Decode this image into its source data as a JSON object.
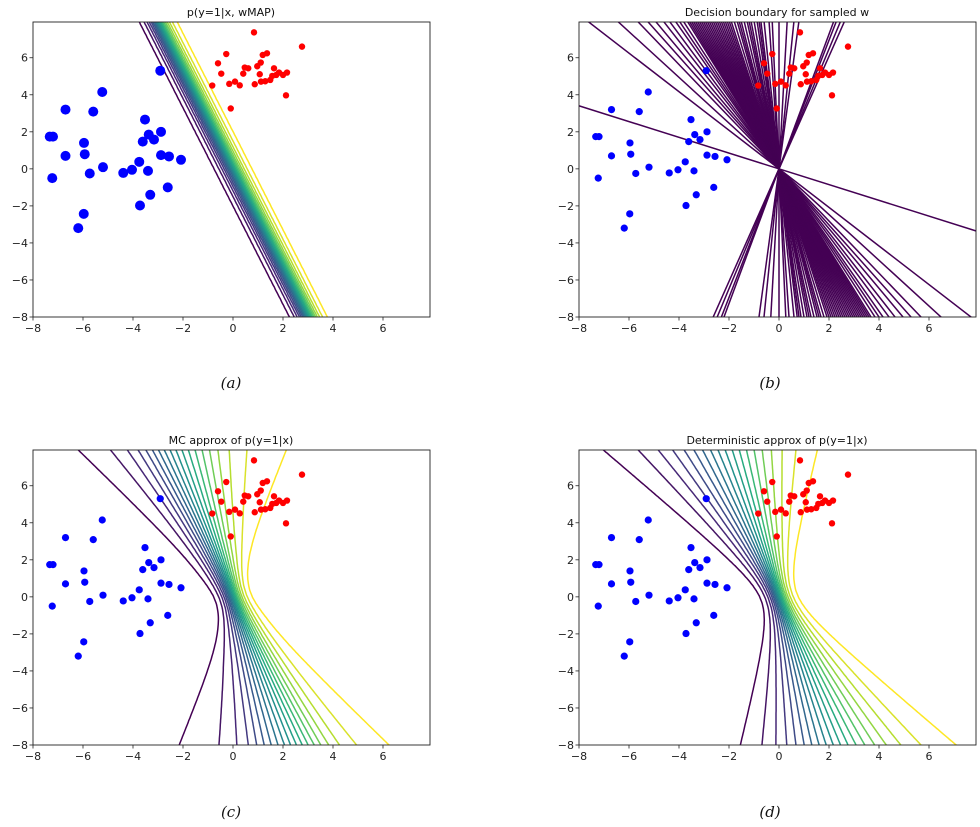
{
  "chart_data": [
    {
      "panel": "a",
      "caption": "(a)",
      "type": "contour",
      "title": "p(y=1|x, wMAP)",
      "xlim": [
        -8,
        7.88
      ],
      "ylim": [
        -8,
        7.93
      ],
      "xticks": [
        -8,
        -6,
        -4,
        -2,
        0,
        2,
        4,
        6
      ],
      "yticks": [
        -8,
        -6,
        -4,
        -2,
        0,
        2,
        4,
        6
      ],
      "colormap": "viridis",
      "contour_levels": [
        0.05,
        0.1,
        0.15,
        0.2,
        0.25,
        0.3,
        0.35,
        0.4,
        0.45,
        0.5,
        0.55,
        0.6,
        0.65,
        0.7,
        0.75,
        0.8,
        0.85,
        0.9,
        0.95
      ],
      "w_map": [
        3.9,
        1.47
      ],
      "class_colors": {
        "class_0": "#0000ff",
        "class_1": "#ff0000"
      },
      "class_0": [
        [
          -7.33,
          1.74
        ],
        [
          -7.2,
          1.74
        ],
        [
          -6.7,
          3.2
        ],
        [
          -5.23,
          4.15
        ],
        [
          -5.59,
          3.09
        ],
        [
          -5.96,
          1.4
        ],
        [
          -5.93,
          0.79
        ],
        [
          -6.7,
          0.7
        ],
        [
          -7.23,
          -0.5
        ],
        [
          -5.73,
          -0.25
        ],
        [
          -5.2,
          0.09
        ],
        [
          -5.97,
          -2.43
        ],
        [
          -6.19,
          -3.2
        ],
        [
          -4.39,
          -0.22
        ],
        [
          -4.04,
          -0.05
        ],
        [
          -3.75,
          0.38
        ],
        [
          -3.4,
          -0.11
        ],
        [
          -3.72,
          -1.98
        ],
        [
          -3.31,
          -1.4
        ],
        [
          -3.52,
          2.66
        ],
        [
          -3.37,
          1.85
        ],
        [
          -3.61,
          1.47
        ],
        [
          -3.16,
          1.58
        ],
        [
          -2.88,
          2.0
        ],
        [
          -2.88,
          0.74
        ],
        [
          -2.56,
          0.67
        ],
        [
          -2.08,
          0.49
        ],
        [
          -2.61,
          -1.0
        ],
        [
          -2.91,
          5.3
        ]
      ],
      "class_1": [
        [
          0.84,
          7.37
        ],
        [
          2.76,
          6.6
        ],
        [
          -0.27,
          6.2
        ],
        [
          -0.6,
          5.7
        ],
        [
          -0.47,
          5.14
        ],
        [
          -0.83,
          4.5
        ],
        [
          -0.15,
          4.59
        ],
        [
          0.08,
          4.71
        ],
        [
          0.27,
          4.51
        ],
        [
          -0.09,
          3.26
        ],
        [
          0.41,
          5.14
        ],
        [
          0.47,
          5.47
        ],
        [
          0.61,
          5.43
        ],
        [
          0.87,
          4.57
        ],
        [
          0.97,
          5.54
        ],
        [
          1.11,
          5.74
        ],
        [
          1.07,
          5.11
        ],
        [
          1.19,
          6.15
        ],
        [
          1.36,
          6.24
        ],
        [
          1.12,
          4.71
        ],
        [
          1.29,
          4.73
        ],
        [
          1.49,
          4.8
        ],
        [
          1.64,
          5.43
        ],
        [
          1.57,
          5.02
        ],
        [
          1.73,
          5.07
        ],
        [
          1.84,
          5.2
        ],
        [
          2.0,
          5.07
        ],
        [
          2.16,
          5.2
        ],
        [
          2.12,
          3.97
        ]
      ]
    },
    {
      "panel": "b",
      "caption": "(b)",
      "type": "line",
      "title": "Decision boundary for sampled w",
      "xlim": [
        -8,
        7.88
      ],
      "ylim": [
        -8,
        7.93
      ],
      "xticks": [
        -8,
        -6,
        -4,
        -2,
        0,
        2,
        4,
        6
      ],
      "yticks": [
        -8,
        -6,
        -4,
        -2,
        0,
        2,
        4,
        6
      ],
      "line_color": "#440154",
      "boundary_lines_x_over_y": [
        0.329,
        0.309,
        0.288,
        0.275,
        0.1,
        0.075,
        0.041,
        0,
        -0.034,
        -0.05,
        -0.075,
        -0.091,
        -0.1,
        -0.11,
        -0.125,
        -0.14,
        -0.15,
        -0.16,
        -0.175,
        -0.19,
        -0.2,
        -0.21,
        -0.225,
        -0.24,
        -0.25,
        -0.26,
        -0.27,
        -0.28,
        -0.29,
        -0.3,
        -0.31,
        -0.32,
        -0.33,
        -0.34,
        -0.35,
        -0.36,
        -0.37,
        -0.38,
        -0.39,
        -0.4,
        -0.41,
        -0.42,
        -0.43,
        -0.44,
        -0.45,
        -0.46,
        -0.48,
        -0.5,
        -0.52,
        -0.55,
        -0.58,
        -0.62,
        -0.66,
        -0.71,
        -0.81,
        -0.96,
        -2.35
      ],
      "class_colors": {
        "class_0": "#0000ff",
        "class_1": "#ff0000"
      },
      "class_0": [
        [
          -7.33,
          1.74
        ],
        [
          -7.2,
          1.74
        ],
        [
          -6.7,
          3.2
        ],
        [
          -5.23,
          4.15
        ],
        [
          -5.59,
          3.09
        ],
        [
          -5.96,
          1.4
        ],
        [
          -5.93,
          0.79
        ],
        [
          -6.7,
          0.7
        ],
        [
          -7.23,
          -0.5
        ],
        [
          -5.73,
          -0.25
        ],
        [
          -5.2,
          0.09
        ],
        [
          -5.97,
          -2.43
        ],
        [
          -6.19,
          -3.2
        ],
        [
          -4.39,
          -0.22
        ],
        [
          -4.04,
          -0.05
        ],
        [
          -3.75,
          0.38
        ],
        [
          -3.4,
          -0.11
        ],
        [
          -3.72,
          -1.98
        ],
        [
          -3.31,
          -1.4
        ],
        [
          -3.52,
          2.66
        ],
        [
          -3.37,
          1.85
        ],
        [
          -3.61,
          1.47
        ],
        [
          -3.16,
          1.58
        ],
        [
          -2.88,
          2.0
        ],
        [
          -2.88,
          0.74
        ],
        [
          -2.56,
          0.67
        ],
        [
          -2.08,
          0.49
        ],
        [
          -2.61,
          -1.0
        ],
        [
          -2.91,
          5.3
        ]
      ],
      "class_1": [
        [
          0.84,
          7.37
        ],
        [
          2.76,
          6.6
        ],
        [
          -0.27,
          6.2
        ],
        [
          -0.6,
          5.7
        ],
        [
          -0.47,
          5.14
        ],
        [
          -0.83,
          4.5
        ],
        [
          -0.15,
          4.59
        ],
        [
          0.08,
          4.71
        ],
        [
          0.27,
          4.51
        ],
        [
          -0.09,
          3.26
        ],
        [
          0.41,
          5.14
        ],
        [
          0.47,
          5.47
        ],
        [
          0.61,
          5.43
        ],
        [
          0.87,
          4.57
        ],
        [
          0.97,
          5.54
        ],
        [
          1.11,
          5.74
        ],
        [
          1.07,
          5.11
        ],
        [
          1.19,
          6.15
        ],
        [
          1.36,
          6.24
        ],
        [
          1.12,
          4.71
        ],
        [
          1.29,
          4.73
        ],
        [
          1.49,
          4.8
        ],
        [
          1.64,
          5.43
        ],
        [
          1.57,
          5.02
        ],
        [
          1.73,
          5.07
        ],
        [
          1.84,
          5.2
        ],
        [
          2.0,
          5.07
        ],
        [
          2.16,
          5.2
        ],
        [
          2.12,
          3.97
        ]
      ]
    },
    {
      "panel": "c",
      "caption": "(c)",
      "type": "contour",
      "title": "MC approx of p(y=1|x)",
      "xlim": [
        -8,
        7.88
      ],
      "ylim": [
        -8,
        7.93
      ],
      "xticks": [
        -8,
        -6,
        -4,
        -2,
        0,
        2,
        4,
        6
      ],
      "yticks": [
        -8,
        -6,
        -4,
        -2,
        0,
        2,
        4,
        6
      ],
      "colormap": "viridis",
      "contour_levels": [
        0.05,
        0.1,
        0.15,
        0.2,
        0.25,
        0.3,
        0.35,
        0.4,
        0.45,
        0.5,
        0.55,
        0.6,
        0.65,
        0.7,
        0.75,
        0.8,
        0.85,
        0.9,
        0.95
      ],
      "class_colors": {
        "class_0": "#0000ff",
        "class_1": "#ff0000"
      },
      "class_0": [
        [
          -7.33,
          1.74
        ],
        [
          -7.2,
          1.74
        ],
        [
          -6.7,
          3.2
        ],
        [
          -5.23,
          4.15
        ],
        [
          -5.59,
          3.09
        ],
        [
          -5.96,
          1.4
        ],
        [
          -5.93,
          0.79
        ],
        [
          -6.7,
          0.7
        ],
        [
          -7.23,
          -0.5
        ],
        [
          -5.73,
          -0.25
        ],
        [
          -5.2,
          0.09
        ],
        [
          -5.97,
          -2.43
        ],
        [
          -6.19,
          -3.2
        ],
        [
          -4.39,
          -0.22
        ],
        [
          -4.04,
          -0.05
        ],
        [
          -3.75,
          0.38
        ],
        [
          -3.4,
          -0.11
        ],
        [
          -3.72,
          -1.98
        ],
        [
          -3.31,
          -1.4
        ],
        [
          -3.52,
          2.66
        ],
        [
          -3.37,
          1.85
        ],
        [
          -3.61,
          1.47
        ],
        [
          -3.16,
          1.58
        ],
        [
          -2.88,
          2.0
        ],
        [
          -2.88,
          0.74
        ],
        [
          -2.56,
          0.67
        ],
        [
          -2.08,
          0.49
        ],
        [
          -2.61,
          -1.0
        ],
        [
          -2.91,
          5.3
        ]
      ],
      "class_1": [
        [
          0.84,
          7.37
        ],
        [
          2.76,
          6.6
        ],
        [
          -0.27,
          6.2
        ],
        [
          -0.6,
          5.7
        ],
        [
          -0.47,
          5.14
        ],
        [
          -0.83,
          4.5
        ],
        [
          -0.15,
          4.59
        ],
        [
          0.08,
          4.71
        ],
        [
          0.27,
          4.51
        ],
        [
          -0.09,
          3.26
        ],
        [
          0.41,
          5.14
        ],
        [
          0.47,
          5.47
        ],
        [
          0.61,
          5.43
        ],
        [
          0.87,
          4.57
        ],
        [
          0.97,
          5.54
        ],
        [
          1.11,
          5.74
        ],
        [
          1.07,
          5.11
        ],
        [
          1.19,
          6.15
        ],
        [
          1.36,
          6.24
        ],
        [
          1.12,
          4.71
        ],
        [
          1.29,
          4.73
        ],
        [
          1.49,
          4.8
        ],
        [
          1.64,
          5.43
        ],
        [
          1.57,
          5.02
        ],
        [
          1.73,
          5.07
        ],
        [
          1.84,
          5.2
        ],
        [
          2.0,
          5.07
        ],
        [
          2.16,
          5.2
        ],
        [
          2.12,
          3.97
        ]
      ]
    },
    {
      "panel": "d",
      "caption": "(d)",
      "type": "contour",
      "title": "Deterministic approx of p(y=1|x)",
      "xlim": [
        -8,
        7.88
      ],
      "ylim": [
        -8,
        7.93
      ],
      "xticks": [
        -8,
        -6,
        -4,
        -2,
        0,
        2,
        4,
        6
      ],
      "yticks": [
        -8,
        -6,
        -4,
        -2,
        0,
        2,
        4,
        6
      ],
      "colormap": "viridis",
      "contour_levels": [
        0.05,
        0.1,
        0.15,
        0.2,
        0.25,
        0.3,
        0.35,
        0.4,
        0.45,
        0.5,
        0.55,
        0.6,
        0.65,
        0.7,
        0.75,
        0.8,
        0.85,
        0.9,
        0.95
      ],
      "class_colors": {
        "class_0": "#0000ff",
        "class_1": "#ff0000"
      },
      "class_0": [
        [
          -7.33,
          1.74
        ],
        [
          -7.2,
          1.74
        ],
        [
          -6.7,
          3.2
        ],
        [
          -5.23,
          4.15
        ],
        [
          -5.59,
          3.09
        ],
        [
          -5.96,
          1.4
        ],
        [
          -5.93,
          0.79
        ],
        [
          -6.7,
          0.7
        ],
        [
          -7.23,
          -0.5
        ],
        [
          -5.73,
          -0.25
        ],
        [
          -5.2,
          0.09
        ],
        [
          -5.97,
          -2.43
        ],
        [
          -6.19,
          -3.2
        ],
        [
          -4.39,
          -0.22
        ],
        [
          -4.04,
          -0.05
        ],
        [
          -3.75,
          0.38
        ],
        [
          -3.4,
          -0.11
        ],
        [
          -3.72,
          -1.98
        ],
        [
          -3.31,
          -1.4
        ],
        [
          -3.52,
          2.66
        ],
        [
          -3.37,
          1.85
        ],
        [
          -3.61,
          1.47
        ],
        [
          -3.16,
          1.58
        ],
        [
          -2.88,
          2.0
        ],
        [
          -2.88,
          0.74
        ],
        [
          -2.56,
          0.67
        ],
        [
          -2.08,
          0.49
        ],
        [
          -2.61,
          -1.0
        ],
        [
          -2.91,
          5.3
        ]
      ],
      "class_1": [
        [
          0.84,
          7.37
        ],
        [
          2.76,
          6.6
        ],
        [
          -0.27,
          6.2
        ],
        [
          -0.6,
          5.7
        ],
        [
          -0.47,
          5.14
        ],
        [
          -0.83,
          4.5
        ],
        [
          -0.15,
          4.59
        ],
        [
          0.08,
          4.71
        ],
        [
          0.27,
          4.51
        ],
        [
          -0.09,
          3.26
        ],
        [
          0.41,
          5.14
        ],
        [
          0.47,
          5.47
        ],
        [
          0.61,
          5.43
        ],
        [
          0.87,
          4.57
        ],
        [
          0.97,
          5.54
        ],
        [
          1.11,
          5.74
        ],
        [
          1.07,
          5.11
        ],
        [
          1.19,
          6.15
        ],
        [
          1.36,
          6.24
        ],
        [
          1.12,
          4.71
        ],
        [
          1.29,
          4.73
        ],
        [
          1.49,
          4.8
        ],
        [
          1.64,
          5.43
        ],
        [
          1.57,
          5.02
        ],
        [
          1.73,
          5.07
        ],
        [
          1.84,
          5.2
        ],
        [
          2.0,
          5.07
        ],
        [
          2.16,
          5.2
        ],
        [
          2.12,
          3.97
        ]
      ]
    }
  ]
}
